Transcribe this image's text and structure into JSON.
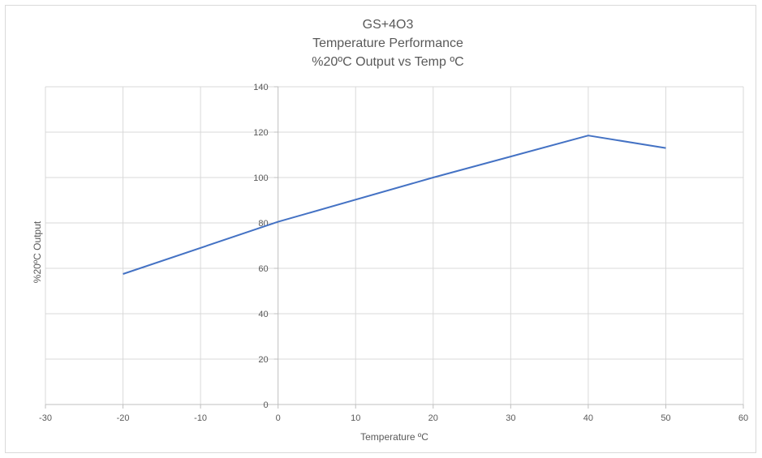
{
  "chart_data": {
    "type": "line",
    "title_lines": [
      "GS+4O3",
      "Temperature Performance",
      "%20ºC Output vs Temp ºC"
    ],
    "xlabel": "Temperature ºC",
    "ylabel": "%20ºC Output",
    "xlim": [
      -30,
      60
    ],
    "ylim": [
      0,
      140
    ],
    "xticks": [
      -30,
      -20,
      -10,
      0,
      10,
      20,
      30,
      40,
      50,
      60
    ],
    "yticks": [
      0,
      20,
      40,
      60,
      80,
      100,
      120,
      140
    ],
    "grid": true,
    "legend": "none",
    "series": [
      {
        "color": "#4472c4",
        "x": [
          -20,
          0,
          20,
          40,
          50
        ],
        "y": [
          57.5,
          80.5,
          100,
          118.5,
          113
        ]
      }
    ]
  }
}
